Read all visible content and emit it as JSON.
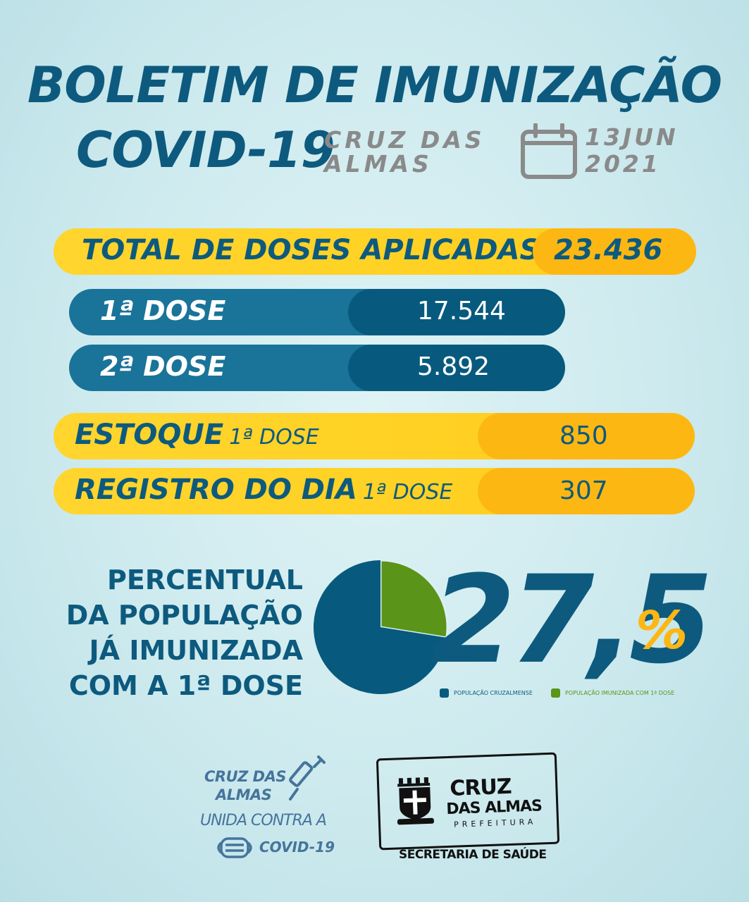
{
  "header": {
    "title": "BOLETIM DE IMUNIZAÇÃO",
    "subtitle": "COVID-19",
    "city_line1": "CRUZ DAS",
    "city_line2": "ALMAS",
    "date_line1": "13JUN",
    "date_line2": "2021"
  },
  "total": {
    "label": "TOTAL DE DOSES APLICADAS",
    "value": "23.436"
  },
  "doses": [
    {
      "label": "1ª DOSE",
      "value": "17.544"
    },
    {
      "label": "2ª DOSE",
      "value": "5.892"
    }
  ],
  "stock": {
    "label": "ESTOQUE",
    "sublabel": "1ª DOSE",
    "value": "850"
  },
  "daily": {
    "label": "REGISTRO DO DIA",
    "sublabel": "1ª DOSE",
    "value": "307"
  },
  "percent": {
    "line1": "PERCENTUAL",
    "line2": "DA POPULAÇÃO",
    "line3": "JÁ IMUNIZADA",
    "line4": "COM A 1ª DOSE",
    "value": "27,5",
    "symbol": "%"
  },
  "chart_data": {
    "type": "pie",
    "slices": [
      {
        "name": "POPULAÇÃO CRUZALMENSE",
        "value": 72.5,
        "color": "#075a7d"
      },
      {
        "name": "POPULAÇÃO IMUNIZADA COM 1ª DOSE",
        "value": 27.5,
        "color": "#5a9418"
      }
    ]
  },
  "footer": {
    "campaign_line1": "CRUZ DAS",
    "campaign_line2": "ALMAS",
    "campaign_line3": "UNIDA CONTRA A",
    "campaign_line4": "COVID-19",
    "logo_line1": "CRUZ",
    "logo_line2": "DAS ALMAS",
    "logo_line3": "PREFEITURA",
    "department": "SECRETARIA DE SAÚDE"
  },
  "colors": {
    "primary_blue": "#0d5a7e",
    "accent_yellow": "#fdb713",
    "accent_green": "#5a9418",
    "gray": "#8a8a8a"
  }
}
